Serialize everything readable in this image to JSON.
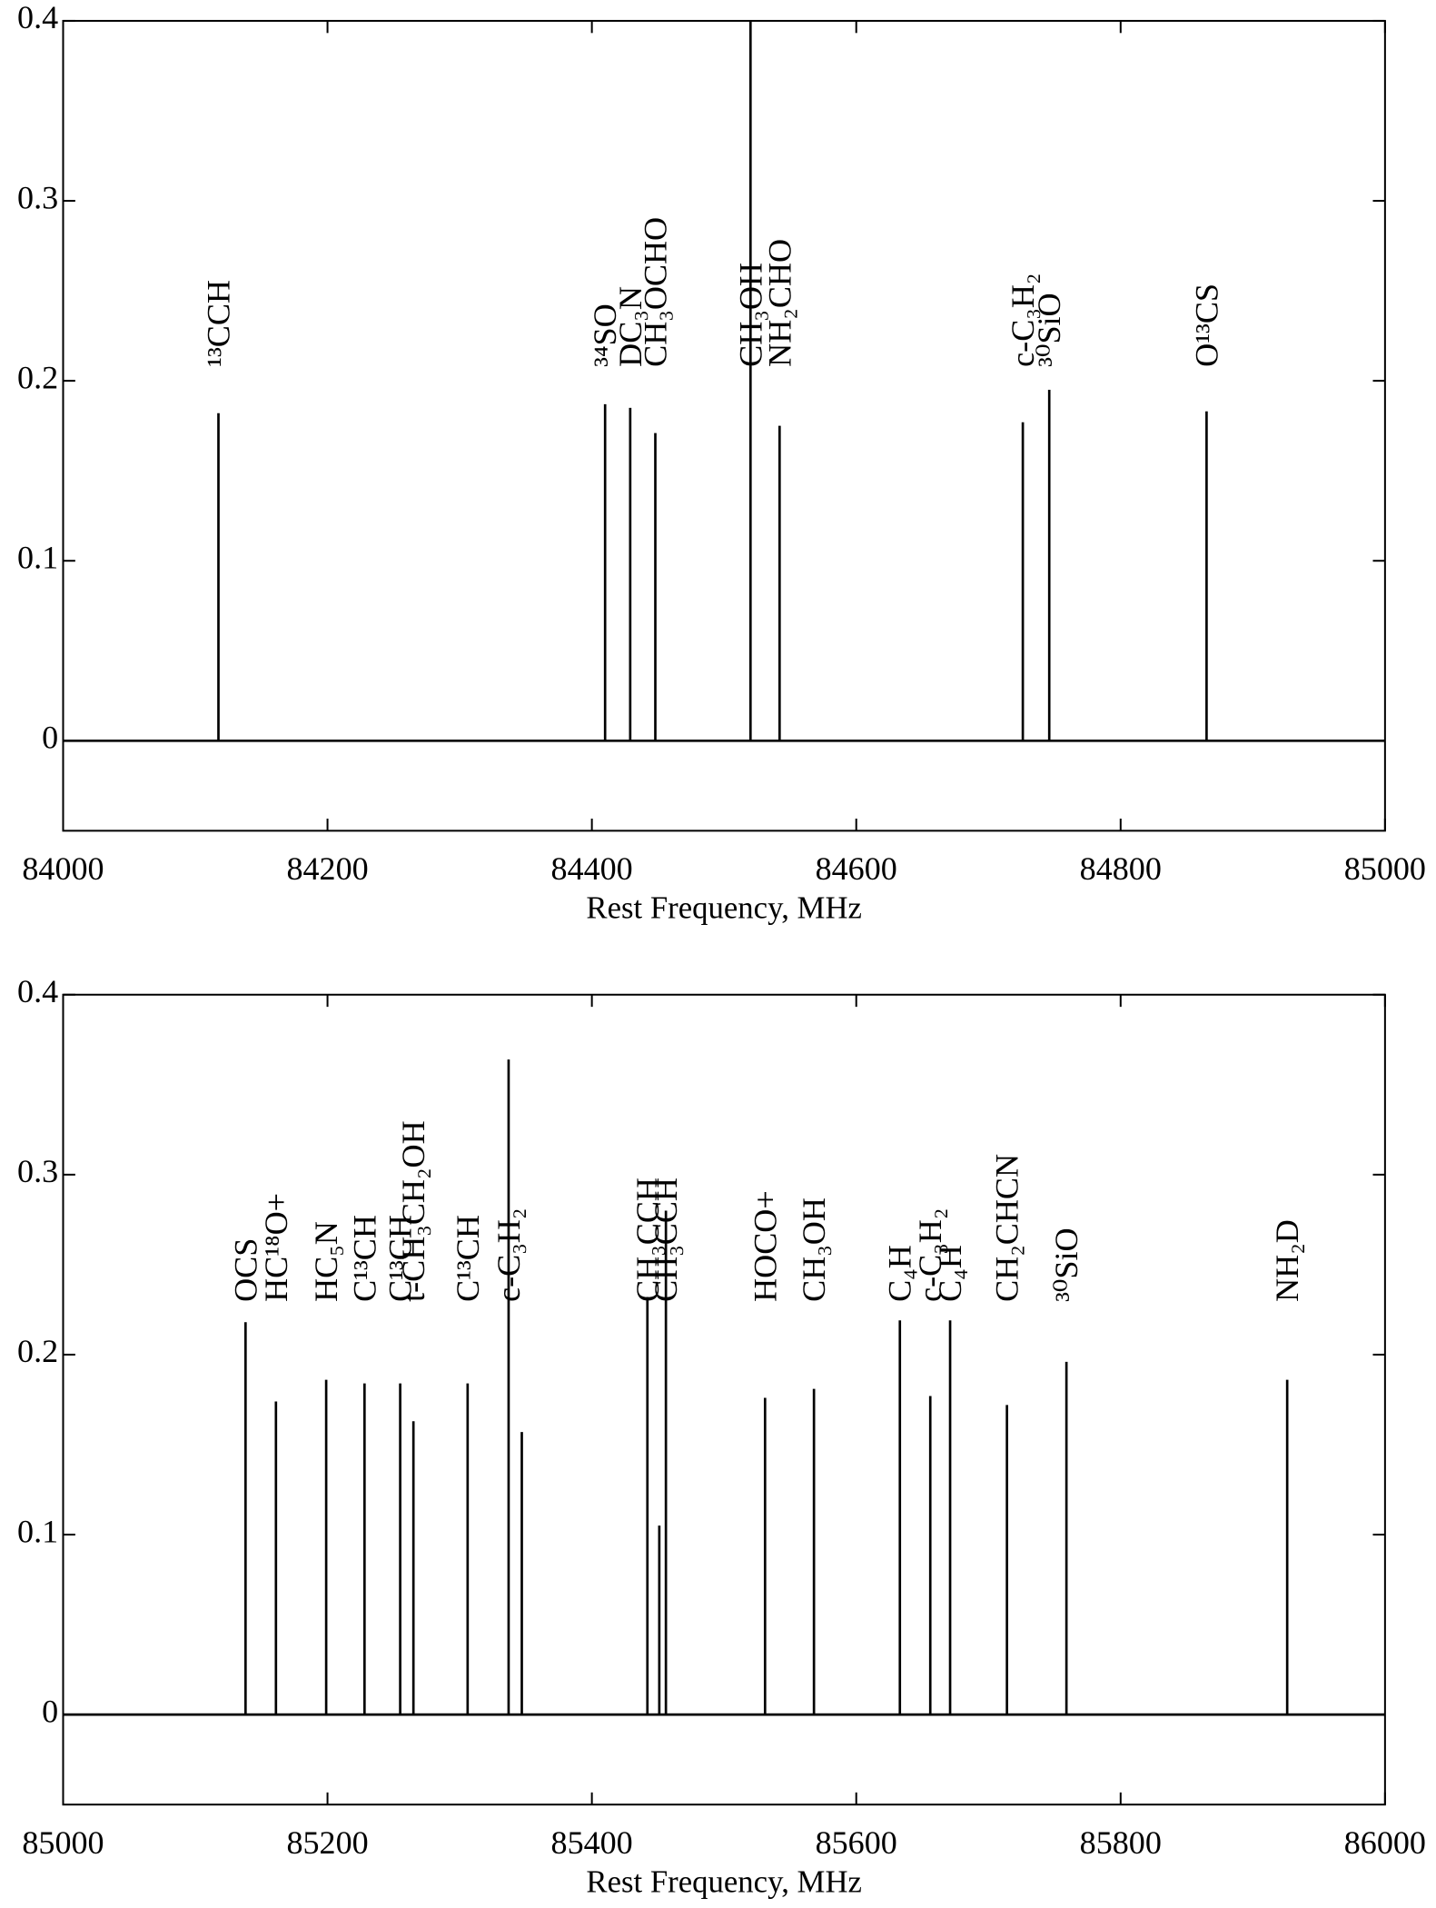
{
  "chart_data": [
    {
      "type": "spectrum",
      "xlabel": "Rest Frequency, MHz",
      "color": "#000000",
      "xlim": [
        84000,
        85000
      ],
      "ylim": [
        -0.05,
        0.4
      ],
      "xticks": [
        84000,
        84200,
        84400,
        84600,
        84800,
        85000
      ],
      "yticks": [
        0,
        0.1,
        0.2,
        0.3,
        0.4
      ],
      "x": [
        84117.5,
        84410,
        84429,
        84448,
        84520,
        84542,
        84726,
        84746,
        84865
      ],
      "values": [
        0.182,
        0.187,
        0.185,
        0.171,
        0.4,
        0.175,
        0.177,
        0.195,
        0.183
      ],
      "labels": [
        "¹³CCH",
        "³⁴SO",
        "DC₃N",
        "CH₃OCHO",
        "CH₃OH",
        "NH₂CHO",
        "c-C₃H₂",
        "³⁰SiO",
        "O¹³CS"
      ]
    },
    {
      "type": "spectrum",
      "xlabel": "Rest Frequency, MHz",
      "color": "#000000",
      "xlim": [
        85000,
        86000
      ],
      "ylim": [
        -0.05,
        0.4
      ],
      "xticks": [
        85000,
        85200,
        85400,
        85600,
        85800,
        86000
      ],
      "yticks": [
        0,
        0.1,
        0.2,
        0.3,
        0.4
      ],
      "x": [
        85138,
        85161,
        85199,
        85228,
        85255,
        85265,
        85306,
        85337,
        85347,
        85442,
        85451,
        85456,
        85531,
        85568,
        85633,
        85656,
        85671,
        85714,
        85759,
        85926
      ],
      "values": [
        0.218,
        0.174,
        0.186,
        0.184,
        0.184,
        0.163,
        0.184,
        0.364,
        0.157,
        0.232,
        0.105,
        0.28,
        0.176,
        0.181,
        0.219,
        0.177,
        0.219,
        0.172,
        0.196,
        0.186
      ],
      "labels": [
        "OCS",
        "HC¹⁸O+",
        "HC₅N",
        "C¹³CH",
        "C¹³CH",
        "t-CH₃CH₂OH",
        "C¹³CH",
        "c-C₃H₂",
        null,
        "CH₃CCH",
        null,
        "CH₃CCH",
        "HOCO+",
        "CH₃OH",
        "C₄H",
        "c-C₃H₂",
        "C₄H",
        "CH₂CHCN",
        "³⁰SiO",
        "NH₂D"
      ]
    }
  ]
}
